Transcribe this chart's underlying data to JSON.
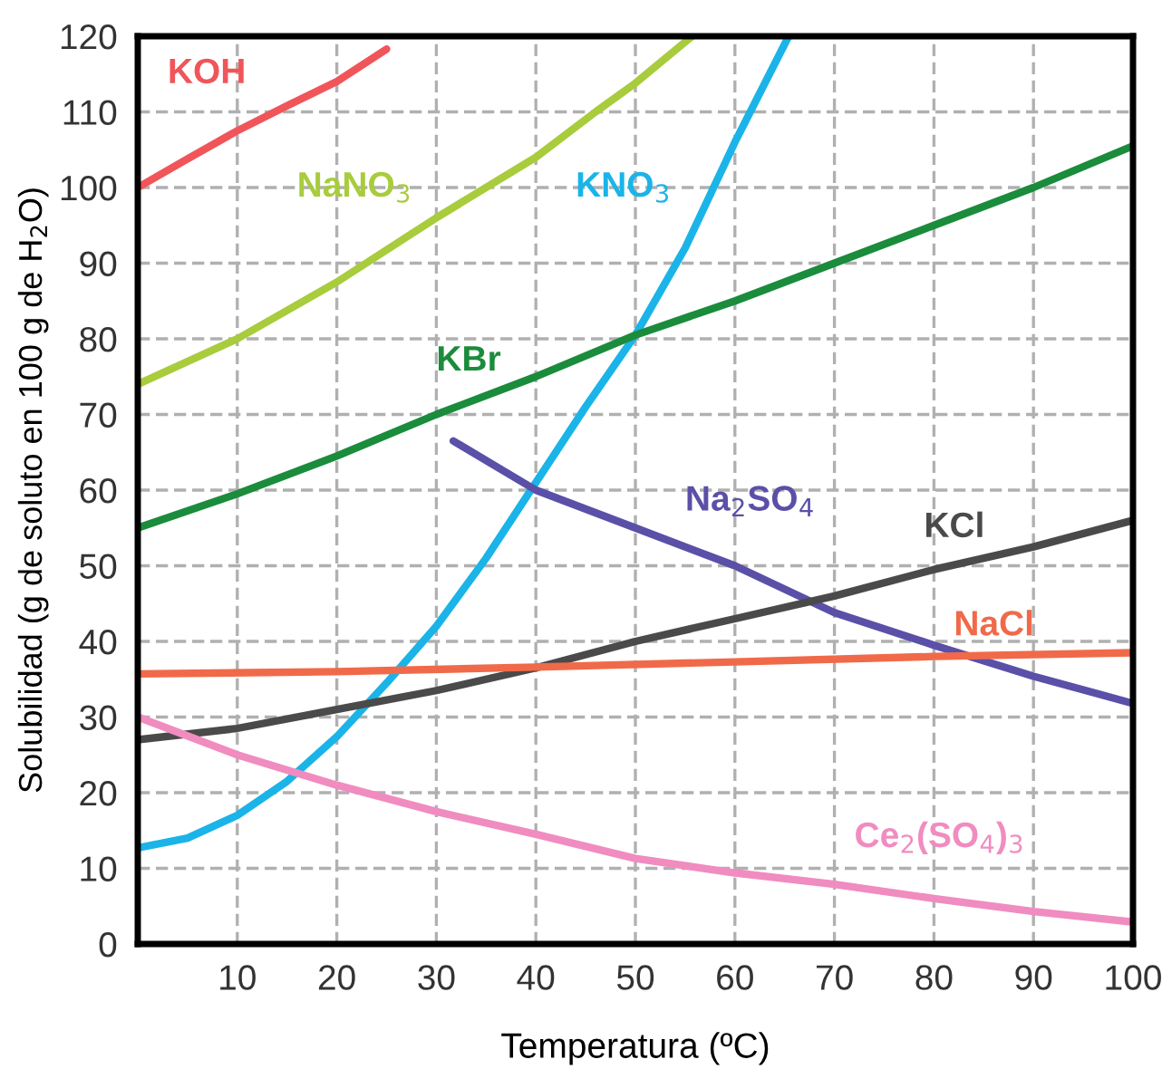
{
  "chart_data": {
    "type": "line",
    "xlabel": "Temperatura (ºC)",
    "ylabel": "Solubilidad (g de soluto en 100 g de H$_{2}$O)",
    "xlim": [
      0,
      100
    ],
    "ylim": [
      0,
      120
    ],
    "xticks": [
      10,
      20,
      30,
      40,
      50,
      60,
      70,
      80,
      90,
      100
    ],
    "yticks": [
      0,
      10,
      20,
      30,
      40,
      50,
      60,
      70,
      80,
      90,
      100,
      110,
      120
    ],
    "grid": true,
    "legend": false,
    "marker": "none",
    "line_style": "solid",
    "series": [
      {
        "name": "KOH",
        "color": "#f0555a",
        "x": [
          0,
          5,
          10,
          15,
          20,
          25
        ],
        "values": [
          100,
          103.8,
          107.5,
          110.8,
          114,
          118.3
        ]
      },
      {
        "name": "NaNO$_{3}$",
        "color": "#a8cc3c",
        "x": [
          0,
          10,
          20,
          30,
          40,
          46,
          50,
          55.7
        ],
        "values": [
          74,
          80,
          87.5,
          96,
          104,
          110,
          113.8,
          120
        ]
      },
      {
        "name": "KNO$_{3}$",
        "color": "#1ab4e8",
        "x": [
          0,
          5,
          10,
          15,
          20,
          25,
          30,
          35,
          40,
          45,
          50,
          55,
          60,
          65.4
        ],
        "values": [
          12.7,
          14,
          17,
          21.5,
          27.4,
          34.5,
          42,
          51,
          61,
          71,
          80.5,
          92,
          106,
          120
        ]
      },
      {
        "name": "KBr",
        "color": "#1a8c3c",
        "x": [
          0,
          10,
          20,
          30,
          40,
          50,
          60,
          70,
          80,
          90,
          100
        ],
        "values": [
          55,
          59.5,
          64.5,
          70,
          75,
          80.5,
          85,
          90,
          95,
          100,
          105.5
        ]
      },
      {
        "name": "Na$_{2}$SO$_{4}$",
        "color": "#5a50a8",
        "x": [
          31.7,
          40,
          50,
          60,
          70,
          80,
          90,
          100
        ],
        "values": [
          66.5,
          60,
          55,
          50,
          43.8,
          39.5,
          35.4,
          31.8
        ]
      },
      {
        "name": "KCl",
        "color": "#4a4a4a",
        "x": [
          0,
          10,
          20,
          30,
          40,
          50,
          60,
          70,
          80,
          90,
          100
        ],
        "values": [
          27,
          28.5,
          31,
          33.5,
          36.5,
          40,
          43,
          46,
          49.5,
          52.5,
          56
        ]
      },
      {
        "name": "NaCl",
        "color": "#f06a4a",
        "x": [
          0,
          20,
          40,
          60,
          80,
          100
        ],
        "values": [
          35.7,
          36,
          36.6,
          37.3,
          38,
          38.5
        ]
      },
      {
        "name": "Ce$_{2}$(SO$_{4}$)$_{3}$",
        "color": "#f08cc0",
        "x": [
          0,
          10,
          20,
          30,
          40,
          50,
          60,
          70,
          80,
          90,
          100
        ],
        "values": [
          30,
          25,
          21,
          17.5,
          14.5,
          11.3,
          9.4,
          7.9,
          6,
          4.3,
          2.9
        ]
      }
    ]
  }
}
